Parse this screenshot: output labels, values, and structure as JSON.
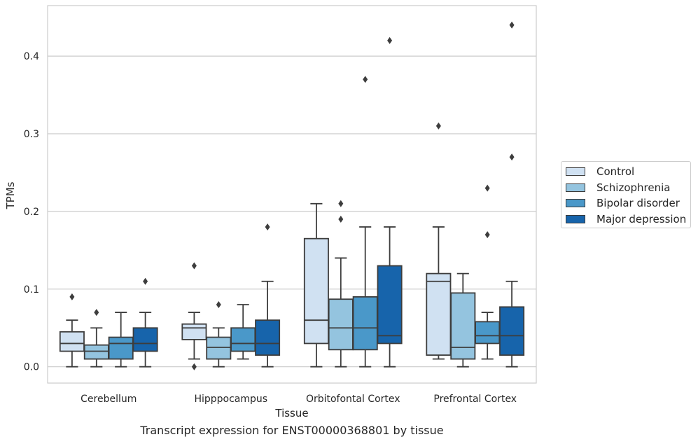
{
  "chart_data": {
    "type": "box",
    "title": "Transcript expression for ENST00000368801 by tissue",
    "xlabel": "Tissue",
    "ylabel": "TPMs",
    "ylim": [
      -0.021,
      0.465
    ],
    "yticks": [
      "0.0",
      "0.1",
      "0.2",
      "0.3",
      "0.4"
    ],
    "grid": true,
    "legend_position": "right",
    "categories": [
      "Cerebellum",
      "Hipppocampus",
      "Orbitofontal Cortex",
      "Prefrontal Cortex"
    ],
    "series": [
      {
        "name": "Control",
        "color": "#d0e1f2",
        "boxes": [
          {
            "whislo": 0.0,
            "q1": 0.02,
            "med": 0.03,
            "q3": 0.045,
            "whishi": 0.06,
            "fliers": [
              0.09
            ]
          },
          {
            "whislo": 0.01,
            "q1": 0.035,
            "med": 0.05,
            "q3": 0.055,
            "whishi": 0.07,
            "fliers": [
              0.13,
              0.0
            ]
          },
          {
            "whislo": 0.0,
            "q1": 0.03,
            "med": 0.06,
            "q3": 0.165,
            "whishi": 0.21,
            "fliers": []
          },
          {
            "whislo": 0.01,
            "q1": 0.015,
            "med": 0.11,
            "q3": 0.12,
            "whishi": 0.18,
            "fliers": [
              0.31
            ]
          }
        ]
      },
      {
        "name": "Schizophrenia",
        "color": "#94c4df",
        "boxes": [
          {
            "whislo": 0.0,
            "q1": 0.01,
            "med": 0.02,
            "q3": 0.028,
            "whishi": 0.05,
            "fliers": [
              0.07
            ]
          },
          {
            "whislo": 0.0,
            "q1": 0.01,
            "med": 0.025,
            "q3": 0.038,
            "whishi": 0.05,
            "fliers": [
              0.08
            ]
          },
          {
            "whislo": 0.0,
            "q1": 0.022,
            "med": 0.05,
            "q3": 0.087,
            "whishi": 0.14,
            "fliers": [
              0.19,
              0.21
            ]
          },
          {
            "whislo": 0.0,
            "q1": 0.01,
            "med": 0.025,
            "q3": 0.095,
            "whishi": 0.12,
            "fliers": []
          }
        ]
      },
      {
        "name": "Bipolar disorder",
        "color": "#4a98c9",
        "boxes": [
          {
            "whislo": 0.0,
            "q1": 0.01,
            "med": 0.03,
            "q3": 0.038,
            "whishi": 0.07,
            "fliers": []
          },
          {
            "whislo": 0.01,
            "q1": 0.02,
            "med": 0.03,
            "q3": 0.05,
            "whishi": 0.08,
            "fliers": []
          },
          {
            "whislo": 0.0,
            "q1": 0.022,
            "med": 0.05,
            "q3": 0.09,
            "whishi": 0.18,
            "fliers": [
              0.37
            ]
          },
          {
            "whislo": 0.01,
            "q1": 0.03,
            "med": 0.04,
            "q3": 0.058,
            "whishi": 0.07,
            "fliers": [
              0.17,
              0.23
            ]
          }
        ]
      },
      {
        "name": "Major depression",
        "color": "#1764ab",
        "boxes": [
          {
            "whislo": 0.0,
            "q1": 0.02,
            "med": 0.03,
            "q3": 0.05,
            "whishi": 0.07,
            "fliers": [
              0.11
            ]
          },
          {
            "whislo": 0.0,
            "q1": 0.015,
            "med": 0.03,
            "q3": 0.06,
            "whishi": 0.11,
            "fliers": [
              0.18
            ]
          },
          {
            "whislo": 0.0,
            "q1": 0.03,
            "med": 0.04,
            "q3": 0.13,
            "whishi": 0.18,
            "fliers": [
              0.42
            ]
          },
          {
            "whislo": 0.0,
            "q1": 0.015,
            "med": 0.04,
            "q3": 0.077,
            "whishi": 0.11,
            "fliers": [
              0.27,
              0.44
            ]
          }
        ]
      }
    ]
  }
}
